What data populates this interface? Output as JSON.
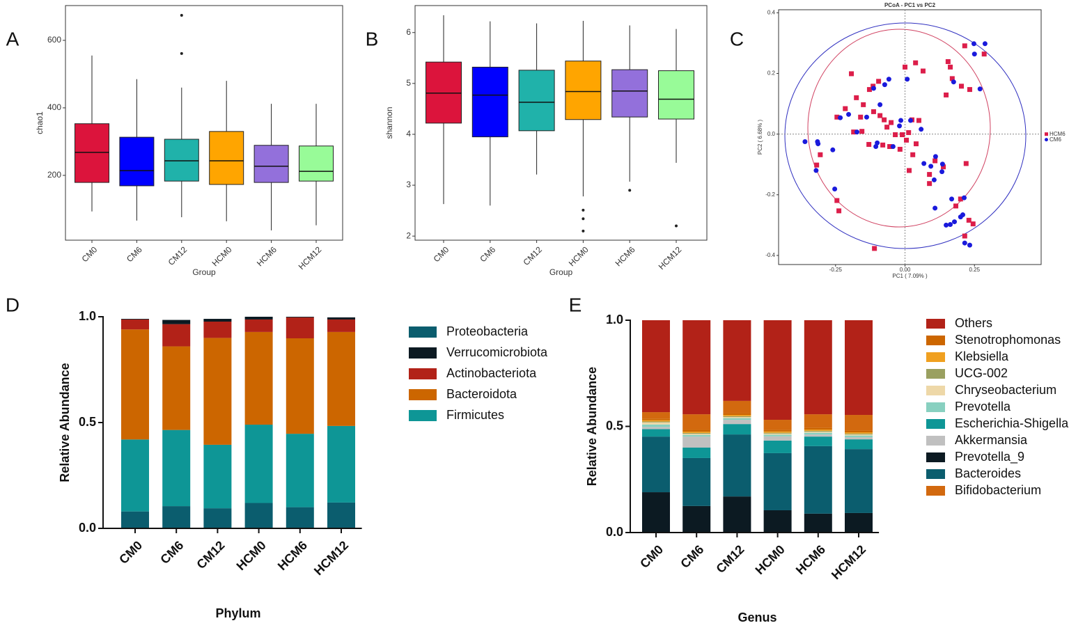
{
  "chart_data": [
    {
      "panel": "A",
      "type": "box",
      "ylabel": "chao1",
      "xlabel": "Group",
      "categories": [
        "CM0",
        "CM6",
        "CM12",
        "HCM0",
        "HCM6",
        "HCM12"
      ],
      "colors": [
        "#dc143c",
        "#0000ff",
        "#20b2aa",
        "#ffa500",
        "#9370db",
        "#98fb98"
      ],
      "ylim": [
        8,
        703
      ],
      "yticks": [
        200,
        400,
        600
      ],
      "boxes": [
        {
          "whislo": 93,
          "q1": 179,
          "med": 268,
          "q3": 353,
          "whishi": 555,
          "fliers": []
        },
        {
          "whislo": 66,
          "q1": 169,
          "med": 214,
          "q3": 313,
          "whishi": 485,
          "fliers": []
        },
        {
          "whislo": 76,
          "q1": 183,
          "med": 243,
          "q3": 307,
          "whishi": 460,
          "fliers": [
            674,
            561
          ]
        },
        {
          "whislo": 64,
          "q1": 173,
          "med": 243,
          "q3": 330,
          "whishi": 480,
          "fliers": []
        },
        {
          "whislo": 37,
          "q1": 179,
          "med": 227,
          "q3": 289,
          "whishi": 412,
          "fliers": []
        },
        {
          "whislo": 52,
          "q1": 183,
          "med": 212,
          "q3": 287,
          "whishi": 412,
          "fliers": []
        }
      ]
    },
    {
      "panel": "B",
      "type": "box",
      "ylabel": "shannon",
      "xlabel": "Group",
      "categories": [
        "CM0",
        "CM6",
        "CM12",
        "HCM0",
        "HCM6",
        "HCM12"
      ],
      "colors": [
        "#dc143c",
        "#0000ff",
        "#20b2aa",
        "#ffa500",
        "#9370db",
        "#98fb98"
      ],
      "ylim": [
        1.92,
        6.53
      ],
      "yticks": [
        2,
        3,
        4,
        5,
        6
      ],
      "boxes": [
        {
          "whislo": 2.63,
          "q1": 4.22,
          "med": 4.81,
          "q3": 5.42,
          "whishi": 6.34,
          "fliers": []
        },
        {
          "whislo": 2.6,
          "q1": 3.95,
          "med": 4.77,
          "q3": 5.32,
          "whishi": 6.22,
          "fliers": []
        },
        {
          "whislo": 3.21,
          "q1": 4.07,
          "med": 4.63,
          "q3": 5.26,
          "whishi": 6.18,
          "fliers": []
        },
        {
          "whislo": 2.78,
          "q1": 4.29,
          "med": 4.84,
          "q3": 5.44,
          "whishi": 6.23,
          "fliers": [
            2.51,
            2.34,
            2.1
          ]
        },
        {
          "whislo": 3.07,
          "q1": 4.34,
          "med": 4.85,
          "q3": 5.27,
          "whishi": 6.14,
          "fliers": [
            2.9
          ]
        },
        {
          "whislo": 3.44,
          "q1": 4.3,
          "med": 4.69,
          "q3": 5.25,
          "whishi": 6.07,
          "fliers": [
            2.2
          ]
        }
      ]
    },
    {
      "panel": "C",
      "type": "scatter",
      "title": "PCoA - PC1 vs PC2",
      "xlabel": "PC1 ( 7.09% )",
      "ylabel": "PC2 ( 6.68% )",
      "xlim": [
        -0.455,
        0.49
      ],
      "ylim": [
        -0.43,
        0.41
      ],
      "xticks": [
        -0.25,
        {
          "value": 0,
          "label": "0.00"
        },
        0.25
      ],
      "yticks": [
        -0.4,
        -0.2,
        {
          "value": 0,
          "label": "0.0"
        },
        0.2,
        0.4
      ],
      "series": [
        {
          "name": "HCM6",
          "color": "#dc1e4a",
          "marker": "square",
          "x": [
            -0.193,
            -0.128,
            -0.115,
            -0.095,
            0.0,
            0.038,
            0.065,
            0.155,
            0.163,
            0.17,
            0.203,
            0.233,
            0.148,
            0.215,
            0.285,
            -0.245,
            -0.215,
            -0.175,
            -0.15,
            -0.16,
            -0.113,
            -0.09,
            -0.075,
            -0.05,
            -0.035,
            -0.01,
            0.013,
            0.025,
            0.05,
            -0.185,
            -0.155,
            -0.13,
            -0.08,
            -0.055,
            -0.018,
            0.005,
            0.04,
            -0.065,
            -0.305,
            -0.318,
            -0.245,
            -0.238,
            -0.11,
            0.028,
            0.088,
            0.108,
            0.088,
            0.015,
            0.22,
            0.2,
            0.183,
            0.215,
            0.23,
            0.245,
            0.138
          ],
          "y": [
            0.199,
            0.147,
            0.158,
            0.174,
            0.221,
            0.235,
            0.208,
            0.239,
            0.221,
            0.183,
            0.158,
            0.147,
            0.129,
            0.291,
            0.264,
            0.056,
            0.084,
            0.12,
            0.097,
            0.056,
            0.074,
            0.061,
            0.047,
            0.038,
            -0.002,
            -0.002,
            0.005,
            0.047,
            0.045,
            0.007,
            0.009,
            -0.034,
            -0.036,
            -0.041,
            -0.05,
            -0.02,
            -0.032,
            0.023,
            -0.068,
            -0.102,
            -0.219,
            -0.253,
            -0.377,
            -0.068,
            -0.163,
            -0.088,
            -0.133,
            -0.12,
            -0.097,
            -0.214,
            -0.237,
            -0.336,
            -0.284,
            -0.296,
            -0.108
          ]
        },
        {
          "name": "CM6",
          "color": "#1a1adc",
          "marker": "circle",
          "x": [
            0.248,
            0.288,
            0.25,
            -0.058,
            0.008,
            -0.113,
            -0.073,
            0.175,
            0.27,
            -0.233,
            -0.203,
            -0.138,
            -0.09,
            -0.015,
            0.02,
            0.058,
            -0.173,
            -0.1,
            -0.043,
            -0.105,
            -0.02,
            -0.36,
            -0.315,
            -0.313,
            -0.26,
            -0.32,
            0.068,
            0.093,
            0.11,
            0.135,
            0.133,
            0.105,
            -0.253,
            0.108,
            0.148,
            0.163,
            0.178,
            0.2,
            0.208,
            0.168,
            0.213,
            0.215,
            0.233
          ],
          "y": [
            0.298,
            0.298,
            0.264,
            0.181,
            0.181,
            0.151,
            0.163,
            0.172,
            0.149,
            0.054,
            0.065,
            0.056,
            0.097,
            0.045,
            0.045,
            0.016,
            0.007,
            -0.029,
            -0.041,
            -0.041,
            0.027,
            -0.025,
            -0.025,
            -0.032,
            -0.052,
            -0.12,
            -0.097,
            -0.106,
            -0.074,
            -0.099,
            -0.124,
            -0.151,
            -0.181,
            -0.244,
            -0.3,
            -0.298,
            -0.289,
            -0.273,
            -0.266,
            -0.214,
            -0.21,
            -0.359,
            -0.366
          ]
        }
      ]
    },
    {
      "panel": "D",
      "type": "bar",
      "stacked": true,
      "ylabel": "Relative Abundance",
      "xlabel": "Phylum",
      "categories": [
        "CM0",
        "CM6",
        "CM12",
        "HCM0",
        "HCM6",
        "HCM12"
      ],
      "ylim": [
        0,
        1
      ],
      "yticks": [
        {
          "value": 0,
          "label": "0.0"
        },
        0.5,
        {
          "value": 1,
          "label": "1.0"
        }
      ],
      "series": [
        {
          "name": "Proteobacteria",
          "color": "#0b5d6e",
          "values": [
            0.08,
            0.105,
            0.095,
            0.12,
            0.1,
            0.122
          ]
        },
        {
          "name": "Verrucomicrobiota",
          "color": "#0c1a22",
          "values": [
            0.003,
            0.02,
            0.013,
            0.013,
            0.003,
            0.01
          ]
        },
        {
          "name": "Actinobacteriota",
          "color": "#b22218",
          "values": [
            0.047,
            0.105,
            0.077,
            0.059,
            0.099,
            0.059
          ]
        },
        {
          "name": "Bacteroidota",
          "color": "#cc6600",
          "values": [
            0.52,
            0.395,
            0.505,
            0.438,
            0.451,
            0.444
          ]
        },
        {
          "name": "Firmicutes",
          "color": "#0e9696",
          "values": [
            0.34,
            0.36,
            0.3,
            0.37,
            0.347,
            0.362
          ]
        }
      ]
    },
    {
      "panel": "E",
      "type": "bar",
      "stacked": true,
      "ylabel": "Relative Abundance",
      "xlabel": "Genus",
      "categories": [
        "CM0",
        "CM6",
        "CM12",
        "HCM0",
        "HCM6",
        "HCM12"
      ],
      "ylim": [
        0,
        1
      ],
      "yticks": [
        {
          "value": 0,
          "label": "0.0"
        },
        0.5,
        {
          "value": 1,
          "label": "1.0"
        }
      ],
      "series": [
        {
          "name": "Others",
          "color": "#b22218",
          "values": [
            0.433,
            0.443,
            0.38,
            0.469,
            0.443,
            0.446
          ]
        },
        {
          "name": "Stenotrophomonas",
          "color": "#cc6600",
          "values": [
            0.008,
            0.01,
            0.008,
            0.008,
            0.008,
            0.008
          ]
        },
        {
          "name": "Klebsiella",
          "color": "#f0a020",
          "values": [
            0.006,
            0.006,
            0.006,
            0.006,
            0.006,
            0.006
          ]
        },
        {
          "name": "UCG-002",
          "color": "#9aa060",
          "values": [
            0.004,
            0.004,
            0.004,
            0.004,
            0.004,
            0.004
          ]
        },
        {
          "name": "Chryseobacterium",
          "color": "#eed8a8",
          "values": [
            0.01,
            0.005,
            0.005,
            0.005,
            0.005,
            0.005
          ]
        },
        {
          "name": "Prevotella",
          "color": "#88d0c0",
          "values": [
            0.012,
            0.008,
            0.008,
            0.008,
            0.008,
            0.008
          ]
        },
        {
          "name": "Escherichia-Shigella",
          "color": "#0e9696",
          "values": [
            0.035,
            0.049,
            0.049,
            0.059,
            0.045,
            0.046
          ]
        },
        {
          "name": "Akkermansia",
          "color": "#c0c0c0",
          "values": [
            0.01,
            0.052,
            0.02,
            0.02,
            0.01,
            0.01
          ]
        },
        {
          "name": "Prevotella_9",
          "color": "#0c1a22",
          "values": [
            0.19,
            0.125,
            0.17,
            0.105,
            0.089,
            0.092
          ]
        },
        {
          "name": "Bacteroides",
          "color": "#0b5d6e",
          "values": [
            0.262,
            0.226,
            0.292,
            0.269,
            0.318,
            0.301
          ]
        },
        {
          "name": "Bifidobacterium",
          "color": "#d2690f",
          "values": [
            0.03,
            0.072,
            0.058,
            0.047,
            0.064,
            0.074
          ]
        }
      ]
    }
  ]
}
